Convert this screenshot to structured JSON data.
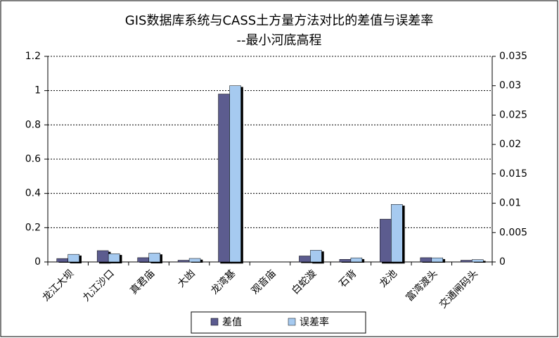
{
  "chart_data": {
    "type": "bar",
    "title": "GIS数据库系统与CASS土方量方法对比的差值与误差率",
    "subtitle": "--最小河底高程",
    "categories": [
      "龙江大坝",
      "九江沙口",
      "真君庙",
      "大凼",
      "龙湾基",
      "观音庙",
      "白蛇漩",
      "石背",
      "龙池",
      "富湾渡头",
      "交通闸码头"
    ],
    "series": [
      {
        "name": "差值",
        "color": "#5b5b8f",
        "values": [
          0.02,
          0.066,
          0.025,
          0.01,
          0.98,
          0,
          0.035,
          0.015,
          0.25,
          0.025,
          0.01
        ]
      },
      {
        "name": "误差率",
        "color": "#a6caf0",
        "axis": "y2",
        "values": [
          0.0013,
          0.0014,
          0.0015,
          0.0006,
          0.03,
          0,
          0.002,
          0.0007,
          0.0098,
          0.0007,
          0.0004
        ]
      }
    ],
    "ylim": [
      0,
      1.2
    ],
    "yticks": [
      0,
      0.2,
      0.4,
      0.6,
      0.8,
      1,
      1.2
    ],
    "y2lim": [
      0,
      0.035
    ],
    "y2ticks": [
      0,
      0.005,
      0.01,
      0.015,
      0.02,
      0.025,
      0.03,
      0.035
    ],
    "grid": true,
    "legend": "bottom"
  }
}
